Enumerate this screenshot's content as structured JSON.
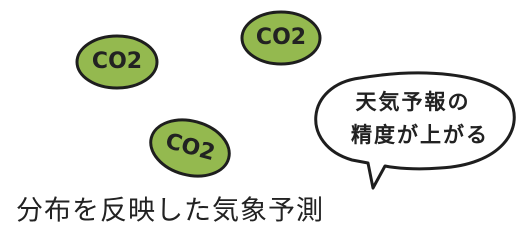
{
  "blobs": [
    {
      "label": "CO2"
    },
    {
      "label": "CO2"
    },
    {
      "label": "CO2"
    }
  ],
  "bubble": {
    "lines": [
      "天気予報の",
      "精度が上がる"
    ]
  },
  "caption": "分布を反映した気象予測"
}
